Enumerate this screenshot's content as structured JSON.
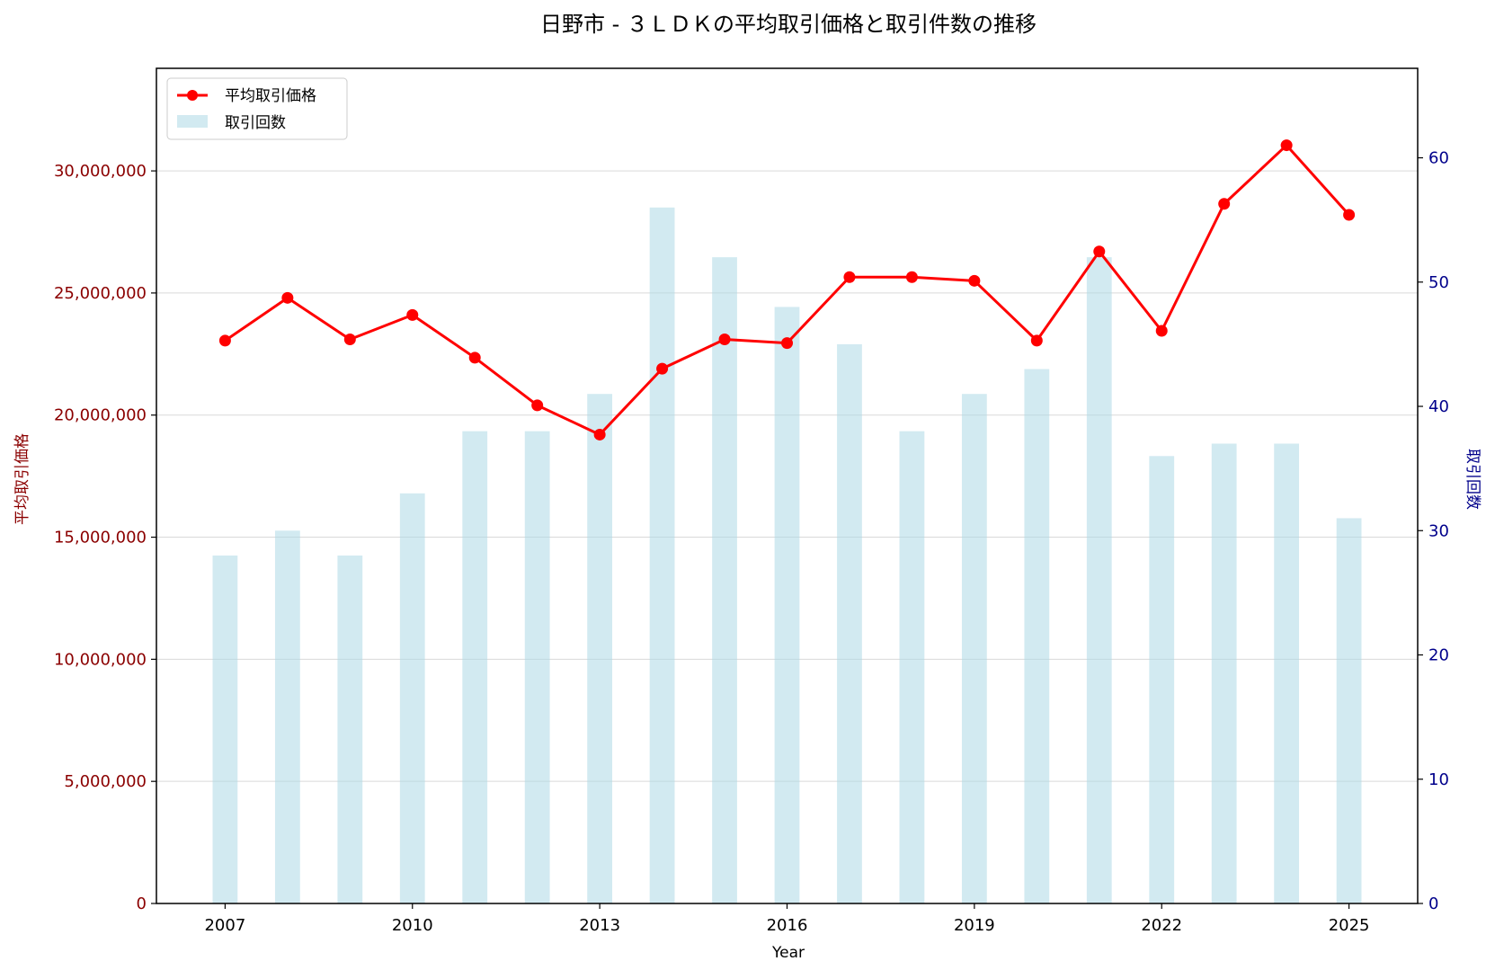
{
  "chart_data": {
    "type": "bar+line",
    "title": "日野市 - ３ＬＤＫの平均取引価格と取引件数の推移",
    "xlabel": "Year",
    "ylabel_left": "平均取引価格",
    "ylabel_right": "取引回数",
    "x": [
      2007,
      2008,
      2009,
      2010,
      2011,
      2012,
      2013,
      2014,
      2015,
      2016,
      2017,
      2018,
      2019,
      2020,
      2021,
      2022,
      2023,
      2024,
      2025
    ],
    "x_ticks": [
      "2007",
      "2010",
      "2013",
      "2016",
      "2019",
      "2022",
      "2025"
    ],
    "x_tick_values": [
      2007,
      2010,
      2013,
      2016,
      2019,
      2022,
      2025
    ],
    "xlim": [
      2005.9,
      2026.1
    ],
    "series": [
      {
        "name": "平均取引価格",
        "kind": "line",
        "axis": "left",
        "color": "#ff0000",
        "values": [
          23050000,
          24800000,
          23100000,
          24100000,
          22350000,
          20400000,
          19200000,
          21900000,
          23100000,
          22950000,
          25650000,
          25650000,
          25500000,
          23050000,
          26700000,
          23450000,
          28650000,
          31050000,
          28200000
        ]
      },
      {
        "name": "取引回数",
        "kind": "bar",
        "axis": "right",
        "color": "#add8e6",
        "values": [
          28,
          30,
          28,
          33,
          38,
          38,
          41,
          56,
          52,
          48,
          45,
          38,
          41,
          43,
          52,
          36,
          37,
          37,
          31
        ]
      }
    ],
    "ylim_left": [
      0,
      34200000
    ],
    "yticks_left": [
      0,
      5000000,
      10000000,
      15000000,
      20000000,
      25000000,
      30000000
    ],
    "yticks_left_labels": [
      "0",
      "5,000,000",
      "10,000,000",
      "15,000,000",
      "20,000,000",
      "25,000,000",
      "30,000,000"
    ],
    "ylim_right": [
      0,
      67.2
    ],
    "yticks_right": [
      0,
      10,
      20,
      30,
      40,
      50,
      60
    ],
    "yticks_right_labels": [
      "0",
      "10",
      "20",
      "30",
      "40",
      "50",
      "60"
    ],
    "left_axis_color": "#8b0000",
    "right_axis_color": "#00008b",
    "grid": "horizontal",
    "legend_position": "top-left"
  }
}
